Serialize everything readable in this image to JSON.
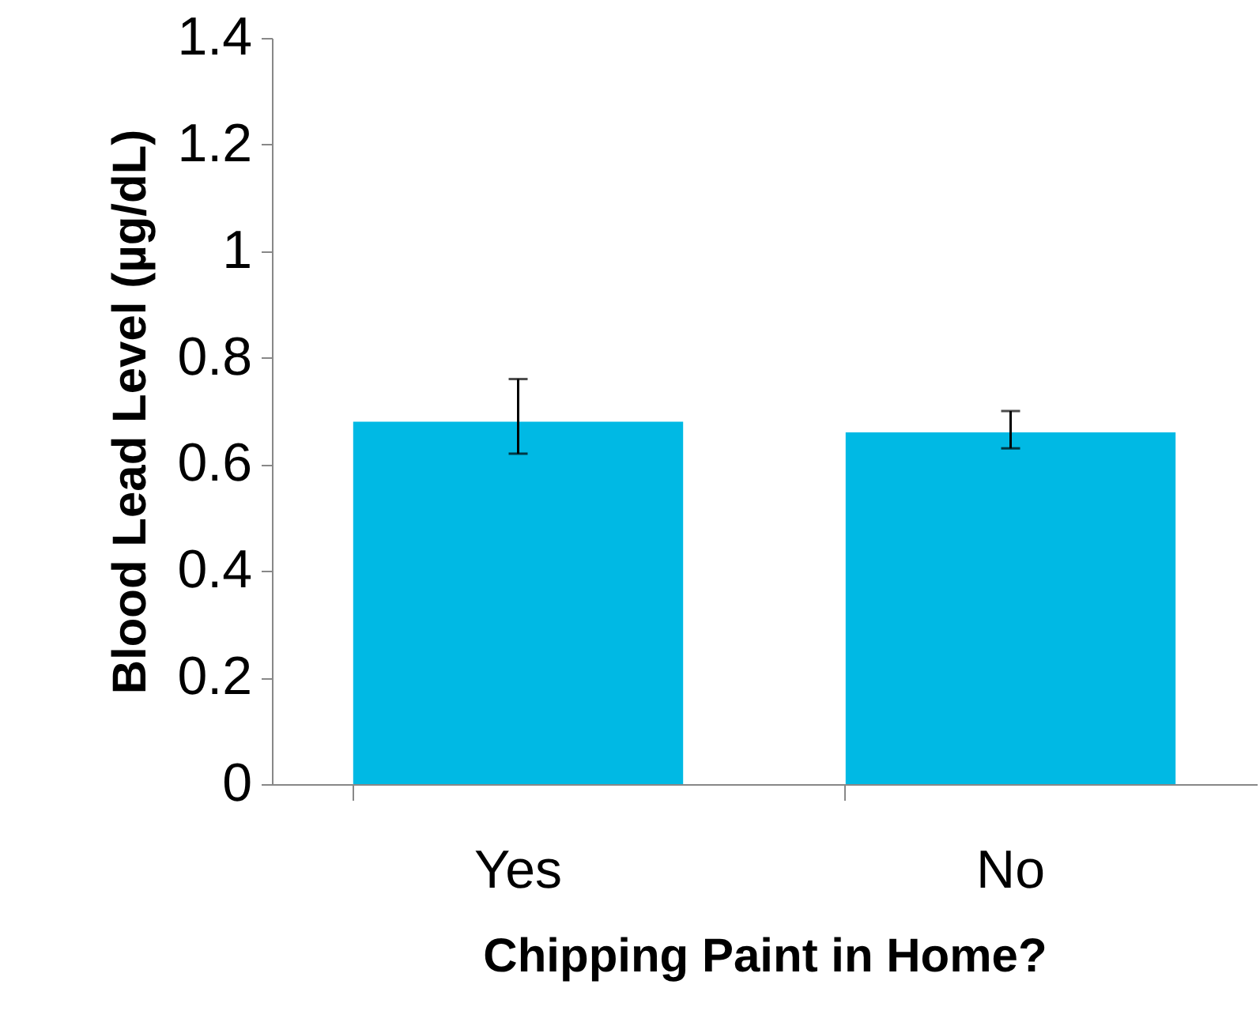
{
  "chart_data": {
    "type": "bar",
    "xlabel": "Chipping Paint in Home?",
    "ylabel": "Blood Lead Level (µg/dL)",
    "categories": [
      "Yes",
      "No"
    ],
    "series": [
      {
        "color": "#00b9e4",
        "values": [
          0.68,
          0.66
        ],
        "errors": [
          [
            0.62,
            0.76
          ],
          [
            0.63,
            0.7
          ]
        ]
      }
    ],
    "ylim": [
      0,
      1.4
    ],
    "yticks": [
      0,
      0.2,
      0.4,
      0.6,
      0.8,
      1,
      1.2,
      1.4
    ],
    "grid": false
  }
}
